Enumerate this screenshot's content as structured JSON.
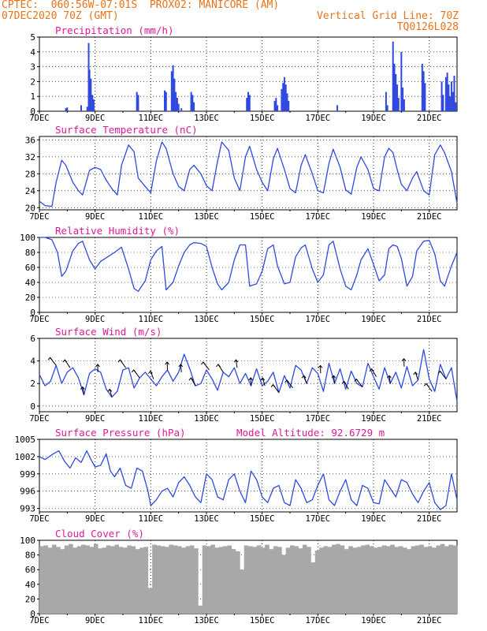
{
  "header": {
    "line1": "CPTEC:  060:56W-07:01S  PROX02: MANICORE (AM)",
    "line2": "07DEC2020 70Z (GMT)",
    "grid_note": "Vertical Grid Line: 70Z",
    "run_code": "TQ0126L028"
  },
  "colors": {
    "header": "#e8731a",
    "title": "#e0189a",
    "line": "#2f49e0",
    "cloud": "#a8a8a8",
    "arrow": "#000000"
  },
  "chart_data": [
    {
      "type": "bar",
      "title": "Precipitation (mm/h)",
      "ylim": [
        0,
        5
      ],
      "yticks": [
        "0",
        "1",
        "2",
        "3",
        "4",
        "5"
      ],
      "xticks": [
        "7DEC",
        "9DEC",
        "11DEC",
        "13DEC",
        "15DEC",
        "17DEC",
        "19DEC",
        "21DEC"
      ],
      "x_unit": "day offset from 7DEC",
      "bars": [
        {
          "x": 0.95,
          "v": 0.2
        },
        {
          "x": 1.0,
          "v": 0.25
        },
        {
          "x": 1.5,
          "v": 0.4
        },
        {
          "x": 1.72,
          "v": 0.3
        },
        {
          "x": 1.77,
          "v": 4.6
        },
        {
          "x": 1.8,
          "v": 2.8
        },
        {
          "x": 1.85,
          "v": 2.2
        },
        {
          "x": 1.9,
          "v": 1.1
        },
        {
          "x": 1.95,
          "v": 0.8
        },
        {
          "x": 3.5,
          "v": 1.3
        },
        {
          "x": 3.55,
          "v": 1.1
        },
        {
          "x": 4.5,
          "v": 1.4
        },
        {
          "x": 4.55,
          "v": 1.3
        },
        {
          "x": 4.75,
          "v": 2.7
        },
        {
          "x": 4.8,
          "v": 3.1
        },
        {
          "x": 4.85,
          "v": 2.2
        },
        {
          "x": 4.9,
          "v": 1.3
        },
        {
          "x": 4.95,
          "v": 0.9
        },
        {
          "x": 5.0,
          "v": 0.5
        },
        {
          "x": 5.1,
          "v": 0.2
        },
        {
          "x": 5.45,
          "v": 1.3
        },
        {
          "x": 5.5,
          "v": 1.1
        },
        {
          "x": 5.55,
          "v": 0.6
        },
        {
          "x": 7.45,
          "v": 0.9
        },
        {
          "x": 7.5,
          "v": 1.3
        },
        {
          "x": 7.55,
          "v": 1.1
        },
        {
          "x": 8.45,
          "v": 0.7
        },
        {
          "x": 8.5,
          "v": 0.9
        },
        {
          "x": 8.55,
          "v": 0.4
        },
        {
          "x": 8.7,
          "v": 1.5
        },
        {
          "x": 8.75,
          "v": 1.9
        },
        {
          "x": 8.8,
          "v": 2.3
        },
        {
          "x": 8.85,
          "v": 1.8
        },
        {
          "x": 8.9,
          "v": 1.2
        },
        {
          "x": 8.95,
          "v": 0.7
        },
        {
          "x": 10.7,
          "v": 0.4
        },
        {
          "x": 12.45,
          "v": 1.3
        },
        {
          "x": 12.5,
          "v": 0.4
        },
        {
          "x": 12.7,
          "v": 4.7
        },
        {
          "x": 12.75,
          "v": 3.2
        },
        {
          "x": 12.8,
          "v": 2.5
        },
        {
          "x": 12.85,
          "v": 1.8
        },
        {
          "x": 12.9,
          "v": 0.9
        },
        {
          "x": 13.0,
          "v": 4.0
        },
        {
          "x": 13.05,
          "v": 1.6
        },
        {
          "x": 13.1,
          "v": 0.8
        },
        {
          "x": 13.75,
          "v": 3.2
        },
        {
          "x": 13.8,
          "v": 2.7
        },
        {
          "x": 13.85,
          "v": 1.9
        },
        {
          "x": 14.45,
          "v": 2.0
        },
        {
          "x": 14.5,
          "v": 1.1
        },
        {
          "x": 14.6,
          "v": 2.3
        },
        {
          "x": 14.65,
          "v": 2.6
        },
        {
          "x": 14.7,
          "v": 1.8
        },
        {
          "x": 14.75,
          "v": 1.0
        },
        {
          "x": 14.8,
          "v": 2.0
        },
        {
          "x": 14.85,
          "v": 1.3
        },
        {
          "x": 14.9,
          "v": 2.4
        },
        {
          "x": 14.95,
          "v": 0.6
        }
      ]
    },
    {
      "type": "line",
      "title": "Surface Temperature (nC)",
      "ylim": [
        19.5,
        36.8
      ],
      "yticks": [
        "20",
        "24",
        "28",
        "32",
        "36"
      ],
      "xticks": [
        "7DEC",
        "9DEC",
        "11DEC",
        "13DEC",
        "15DEC",
        "17DEC",
        "19DEC",
        "21DEC"
      ],
      "x_unit": "day offset from 7DEC",
      "x": [
        0,
        0.2,
        0.45,
        0.6,
        0.8,
        0.95,
        1.2,
        1.4,
        1.55,
        1.8,
        2.0,
        2.2,
        2.4,
        2.6,
        2.8,
        2.95,
        3.2,
        3.4,
        3.55,
        3.8,
        4.0,
        4.2,
        4.4,
        4.55,
        4.8,
        5.0,
        5.2,
        5.4,
        5.55,
        5.8,
        6.0,
        6.2,
        6.4,
        6.55,
        6.8,
        7.0,
        7.2,
        7.4,
        7.55,
        7.8,
        8.0,
        8.2,
        8.4,
        8.55,
        8.8,
        9.0,
        9.2,
        9.4,
        9.55,
        9.8,
        10.0,
        10.2,
        10.4,
        10.55,
        10.8,
        11.0,
        11.2,
        11.4,
        11.55,
        11.8,
        12.0,
        12.2,
        12.4,
        12.55,
        12.7,
        12.85,
        13.0,
        13.2,
        13.4,
        13.55,
        13.8,
        14.0,
        14.2,
        14.4,
        14.55,
        14.8,
        15.0
      ],
      "y": [
        21.5,
        20.5,
        20.3,
        26.0,
        31.2,
        30.0,
        26.0,
        24.0,
        23.0,
        28.8,
        29.5,
        29.0,
        26.5,
        24.5,
        23.0,
        30.0,
        34.8,
        33.2,
        27.0,
        25.0,
        23.5,
        31.0,
        35.5,
        34.0,
        28.0,
        25.0,
        24.0,
        29.0,
        30.0,
        28.0,
        25.2,
        24.0,
        31.0,
        35.5,
        33.5,
        27.0,
        24.0,
        32.0,
        34.5,
        29.0,
        26.0,
        24.0,
        31.5,
        34.0,
        29.0,
        24.5,
        23.5,
        30.0,
        32.5,
        28.0,
        24.0,
        23.5,
        30.5,
        33.8,
        29.5,
        24.2,
        23.2,
        29.5,
        32.0,
        29.0,
        24.5,
        24.0,
        32.0,
        34.0,
        33.0,
        29.0,
        25.5,
        24.0,
        27.0,
        28.5,
        24.0,
        23.0,
        32.5,
        34.8,
        33.0,
        28.5,
        21.0
      ]
    },
    {
      "type": "line",
      "title": "Relative Humidity (%)",
      "ylim": [
        0,
        100
      ],
      "yticks": [
        "0",
        "20",
        "40",
        "60",
        "80",
        "100"
      ],
      "xticks": [
        "7DEC",
        "9DEC",
        "11DEC",
        "13DEC",
        "15DEC",
        "17DEC",
        "19DEC",
        "21DEC"
      ],
      "x_unit": "day offset from 7DEC",
      "x": [
        0,
        0.2,
        0.45,
        0.65,
        0.8,
        0.95,
        1.2,
        1.4,
        1.55,
        1.8,
        2.0,
        2.2,
        2.45,
        2.7,
        2.95,
        3.2,
        3.4,
        3.55,
        3.8,
        4.0,
        4.2,
        4.4,
        4.55,
        4.8,
        5.0,
        5.2,
        5.4,
        5.55,
        5.8,
        6.0,
        6.2,
        6.4,
        6.55,
        6.8,
        7.0,
        7.2,
        7.4,
        7.55,
        7.8,
        8.0,
        8.2,
        8.4,
        8.55,
        8.8,
        9.0,
        9.2,
        9.4,
        9.55,
        9.8,
        10.0,
        10.2,
        10.4,
        10.55,
        10.8,
        11.0,
        11.2,
        11.4,
        11.55,
        11.8,
        12.0,
        12.2,
        12.4,
        12.55,
        12.7,
        12.85,
        13.0,
        13.2,
        13.4,
        13.55,
        13.8,
        14.0,
        14.2,
        14.4,
        14.55,
        14.8,
        15.0
      ],
      "y": [
        100,
        100,
        97,
        80,
        48,
        55,
        82,
        92,
        95,
        70,
        58,
        68,
        74,
        80,
        87,
        58,
        32,
        28,
        42,
        70,
        82,
        88,
        30,
        40,
        62,
        80,
        90,
        93,
        92,
        88,
        60,
        38,
        30,
        40,
        70,
        90,
        90,
        35,
        38,
        55,
        85,
        90,
        62,
        38,
        40,
        74,
        86,
        90,
        58,
        40,
        50,
        90,
        95,
        58,
        35,
        30,
        50,
        70,
        85,
        64,
        42,
        50,
        85,
        90,
        88,
        72,
        35,
        48,
        82,
        95,
        96,
        78,
        42,
        35,
        62,
        80
      ]
    },
    {
      "type": "line",
      "title": "Surface Wind (m/s)",
      "ylim": [
        -0.5,
        6
      ],
      "yticks": [
        "0",
        "2",
        "4",
        "6"
      ],
      "xticks": [
        "7DEC",
        "9DEC",
        "11DEC",
        "13DEC",
        "15DEC",
        "17DEC",
        "19DEC",
        "21DEC"
      ],
      "x_unit": "day offset from 7DEC",
      "x": [
        0,
        0.2,
        0.4,
        0.6,
        0.8,
        1.0,
        1.2,
        1.4,
        1.6,
        1.8,
        2.0,
        2.2,
        2.4,
        2.6,
        2.8,
        3.0,
        3.2,
        3.4,
        3.6,
        3.8,
        4.0,
        4.2,
        4.4,
        4.6,
        4.8,
        5.0,
        5.2,
        5.4,
        5.6,
        5.8,
        6.0,
        6.2,
        6.4,
        6.6,
        6.8,
        7.0,
        7.2,
        7.4,
        7.6,
        7.8,
        8.0,
        8.2,
        8.4,
        8.6,
        8.8,
        9.0,
        9.2,
        9.4,
        9.6,
        9.8,
        10.0,
        10.2,
        10.4,
        10.6,
        10.8,
        11.0,
        11.2,
        11.4,
        11.6,
        11.8,
        12.0,
        12.2,
        12.4,
        12.6,
        12.8,
        13.0,
        13.2,
        13.4,
        13.6,
        13.8,
        14.0,
        14.2,
        14.4,
        14.6,
        14.8,
        15.0
      ],
      "y": [
        2.8,
        1.8,
        2.2,
        3.6,
        2.0,
        3.0,
        3.4,
        2.5,
        1.0,
        2.9,
        3.3,
        3.0,
        1.5,
        0.8,
        1.3,
        3.2,
        3.4,
        1.6,
        2.5,
        3.0,
        2.4,
        1.8,
        2.6,
        3.2,
        2.2,
        3.0,
        4.6,
        3.3,
        1.8,
        2.0,
        3.2,
        2.4,
        1.4,
        3.0,
        2.6,
        3.4,
        2.0,
        2.9,
        1.8,
        3.3,
        1.8,
        2.2,
        3.0,
        1.2,
        2.7,
        1.6,
        3.6,
        3.2,
        2.0,
        3.4,
        2.9,
        1.3,
        3.8,
        2.0,
        3.3,
        1.5,
        3.1,
        2.0,
        1.7,
        3.8,
        2.6,
        1.5,
        3.4,
        2.0,
        3.0,
        1.6,
        3.5,
        1.8,
        2.3,
        5.0,
        2.4,
        1.3,
        3.7,
        2.4,
        3.4,
        0.4
      ]
    },
    {
      "type": "line",
      "title": "Surface Pressure (hPa)",
      "subtitle": "Model Altitude: 92.6729 m",
      "ylim": [
        992.4,
        1005
      ],
      "yticks": [
        "993",
        "996",
        "999",
        "1002",
        "1005"
      ],
      "xticks": [
        "7DEC",
        "9DEC",
        "11DEC",
        "13DEC",
        "15DEC",
        "17DEC",
        "19DEC",
        "21DEC"
      ],
      "x_unit": "day offset from 7DEC",
      "x": [
        0,
        0.2,
        0.5,
        0.7,
        0.9,
        1.1,
        1.3,
        1.5,
        1.7,
        1.85,
        2.0,
        2.2,
        2.4,
        2.55,
        2.7,
        2.9,
        3.1,
        3.3,
        3.5,
        3.7,
        3.9,
        4.0,
        4.2,
        4.4,
        4.6,
        4.8,
        5.0,
        5.2,
        5.4,
        5.6,
        5.8,
        6.0,
        6.2,
        6.4,
        6.6,
        6.8,
        7.0,
        7.2,
        7.4,
        7.6,
        7.8,
        8.0,
        8.2,
        8.4,
        8.6,
        8.8,
        9.0,
        9.2,
        9.4,
        9.6,
        9.8,
        10.0,
        10.2,
        10.4,
        10.6,
        10.8,
        11.0,
        11.2,
        11.4,
        11.6,
        11.8,
        12.0,
        12.2,
        12.4,
        12.6,
        12.8,
        13.0,
        13.2,
        13.4,
        13.6,
        13.8,
        14.0,
        14.2,
        14.4,
        14.6,
        14.8,
        15.0
      ],
      "y": [
        1002.0,
        1001.5,
        1002.5,
        1003.0,
        1001.2,
        1000.0,
        1001.8,
        1001.0,
        1003.0,
        1001.5,
        1000.2,
        1000.5,
        1002.5,
        999.5,
        998.5,
        1000.0,
        997.0,
        996.5,
        1000.0,
        999.5,
        996.0,
        993.5,
        994.5,
        996.0,
        996.5,
        995.0,
        997.5,
        998.5,
        997.0,
        995.0,
        994.0,
        999.0,
        998.0,
        995.0,
        994.5,
        998.0,
        999.0,
        996.0,
        994.0,
        999.5,
        998.0,
        995.0,
        994.0,
        996.5,
        997.0,
        994.0,
        993.5,
        998.0,
        996.5,
        994.0,
        994.5,
        997.0,
        999.0,
        994.5,
        993.5,
        996.0,
        998.0,
        994.5,
        993.5,
        997.0,
        996.5,
        994.0,
        993.8,
        998.0,
        996.5,
        995.0,
        998.0,
        997.5,
        995.5,
        994.0,
        996.0,
        997.5,
        994.0,
        992.8,
        993.5,
        999.0,
        994.5
      ]
    },
    {
      "type": "bar",
      "title": "Cloud Cover (%)",
      "ylim": [
        0,
        100
      ],
      "yticks": [
        "0",
        "20",
        "40",
        "60",
        "80",
        "100"
      ],
      "xticks": [
        "7DEC",
        "9DEC",
        "11DEC",
        "13DEC",
        "15DEC",
        "17DEC",
        "19DEC",
        "21DEC"
      ],
      "x_unit": "day offset from 7DEC",
      "bins": 100,
      "values": [
        92,
        93,
        90,
        94,
        91,
        88,
        93,
        95,
        90,
        92,
        94,
        93,
        91,
        95,
        89,
        90,
        93,
        92,
        94,
        91,
        90,
        93,
        92,
        88,
        90,
        91,
        35,
        94,
        93,
        92,
        91,
        94,
        93,
        92,
        90,
        92,
        93,
        89,
        11,
        93,
        92,
        94,
        90,
        91,
        92,
        93,
        88,
        85,
        60,
        93,
        92,
        91,
        93,
        90,
        94,
        88,
        92,
        91,
        80,
        90,
        93,
        92,
        89,
        94,
        91,
        70,
        86,
        90,
        92,
        91,
        94,
        95,
        93,
        88,
        92,
        90,
        91,
        93,
        94,
        92,
        90,
        91,
        93,
        92,
        94,
        91,
        92,
        90,
        88,
        92,
        93,
        94,
        91,
        92,
        90,
        93,
        95,
        92,
        94,
        93
      ]
    }
  ]
}
